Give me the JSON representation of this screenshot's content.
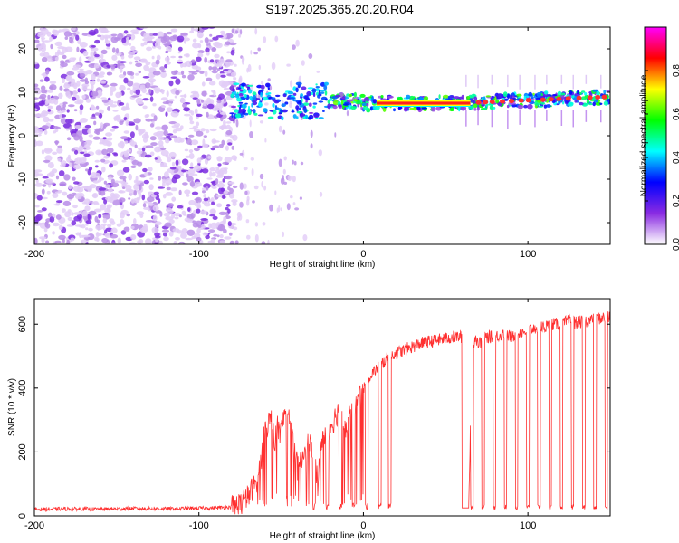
{
  "title": "S197.2025.365.20.20.R04",
  "chart_data": [
    {
      "type": "heatmap",
      "xlabel": "Height of straight line (km)",
      "ylabel": "Frequency (Hz)",
      "xlim": [
        -200,
        150
      ],
      "ylim": [
        -25,
        25
      ],
      "xticks": [
        -200,
        -100,
        0,
        100
      ],
      "yticks": [
        -20,
        -10,
        0,
        10,
        20
      ],
      "colorbar": {
        "label": "Normalized spectral amplitude",
        "range": [
          0,
          1
        ],
        "ticks": [
          0.0,
          0.2,
          0.4,
          0.6,
          0.8
        ],
        "colormap": [
          "#ffffff",
          "#8a2be2",
          "#0000ff",
          "#00ffff",
          "#00ff00",
          "#ffff00",
          "#ff0000",
          "#ff00ff"
        ]
      },
      "features": {
        "noise_region_km": [
          -200,
          -78
        ],
        "scatter_region_km": [
          -78,
          -15
        ],
        "signal_band_hz": [
          6,
          10
        ],
        "strong_carrier_km": [
          8,
          65
        ],
        "carrier_frequency_hz": 7.5,
        "carrier_rising_to_hz": 9
      }
    },
    {
      "type": "line",
      "xlabel": "Height of straight line (km)",
      "ylabel": "SNR (10 * v/v)",
      "xlim": [
        -200,
        150
      ],
      "ylim": [
        0,
        680
      ],
      "xticks": [
        -200,
        -100,
        0,
        100
      ],
      "yticks": [
        0,
        200,
        400,
        600
      ],
      "series": [
        {
          "color": "#ff3030",
          "x": [
            -200,
            -180,
            -160,
            -140,
            -120,
            -100,
            -90,
            -80,
            -75,
            -70,
            -66,
            -64,
            -62,
            -60,
            -58,
            -56,
            -54,
            -52,
            -50,
            -48,
            -46,
            -44,
            -42,
            -40,
            -38,
            -36,
            -34,
            -32,
            -30,
            -28,
            -26,
            -24,
            -22,
            -20,
            -18,
            -16,
            -14,
            -12,
            -10,
            -8,
            -6,
            -4,
            -2,
            0,
            2,
            4,
            6,
            8,
            10,
            12,
            14,
            16,
            20,
            25,
            30,
            35,
            40,
            45,
            50,
            55,
            60,
            62,
            64,
            66,
            68,
            70,
            75,
            80,
            85,
            90,
            95,
            100,
            105,
            110,
            115,
            120,
            125,
            130,
            135,
            140,
            145,
            150
          ],
          "values": [
            20,
            22,
            21,
            23,
            22,
            24,
            25,
            28,
            35,
            60,
            100,
            120,
            180,
            260,
            290,
            300,
            230,
            280,
            260,
            320,
            340,
            280,
            200,
            150,
            160,
            210,
            220,
            230,
            180,
            120,
            200,
            250,
            270,
            280,
            300,
            320,
            340,
            300,
            260,
            330,
            340,
            350,
            380,
            400,
            420,
            440,
            450,
            460,
            470,
            480,
            490,
            500,
            510,
            520,
            530,
            540,
            545,
            550,
            555,
            560,
            560,
            30,
            25,
            520,
            560,
            540,
            560,
            560,
            570,
            560,
            575,
            580,
            590,
            590,
            600,
            600,
            610,
            605,
            610,
            615,
            620,
            620
          ]
        }
      ]
    }
  ]
}
